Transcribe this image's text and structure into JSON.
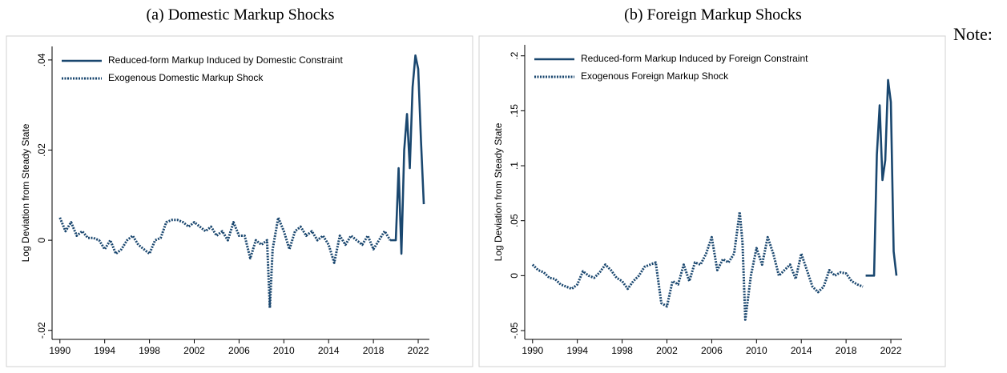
{
  "chart_data": [
    {
      "type": "line",
      "title": "(a) Domestic Markup Shocks",
      "ylabel": "Log Deviation from Steady State",
      "x": [
        1990,
        1990.5,
        1991,
        1991.5,
        1992,
        1992.5,
        1993,
        1993.5,
        1994,
        1994.5,
        1995,
        1995.5,
        1996,
        1996.5,
        1997,
        1997.5,
        1998,
        1998.5,
        1999,
        1999.5,
        2000,
        2000.5,
        2001,
        2001.5,
        2002,
        2002.5,
        2003,
        2003.5,
        2004,
        2004.5,
        2005,
        2005.5,
        2006,
        2006.5,
        2007,
        2007.5,
        2008,
        2008.5,
        2008.75,
        2009,
        2009.5,
        2010,
        2010.5,
        2011,
        2011.5,
        2012,
        2012.5,
        2013,
        2013.5,
        2014,
        2014.5,
        2015,
        2015.5,
        2016,
        2016.5,
        2017,
        2017.5,
        2018,
        2018.5,
        2019,
        2019.5,
        2019.75,
        2020,
        2020.25,
        2020.5,
        2020.75,
        2021,
        2021.25,
        2021.5,
        2021.75,
        2022,
        2022.25,
        2022.5
      ],
      "series": [
        {
          "name": "Reduced-form Markup Induced by Domestic Constraint",
          "color": "#1a476f",
          "style": "solid",
          "values": [
            null,
            null,
            null,
            null,
            null,
            null,
            null,
            null,
            null,
            null,
            null,
            null,
            null,
            null,
            null,
            null,
            null,
            null,
            null,
            null,
            null,
            null,
            null,
            null,
            null,
            null,
            null,
            null,
            null,
            null,
            null,
            null,
            null,
            null,
            null,
            null,
            null,
            null,
            null,
            null,
            null,
            null,
            null,
            null,
            null,
            null,
            null,
            null,
            null,
            null,
            null,
            null,
            null,
            null,
            null,
            null,
            null,
            null,
            null,
            null,
            0,
            0,
            0,
            0.016,
            -0.003,
            0.02,
            0.028,
            0.016,
            0.034,
            0.041,
            0.038,
            0.022,
            0.008
          ]
        },
        {
          "name": "Exogenous Domestic Markup Shock",
          "color": "#1a476f",
          "style": "dotted",
          "values": [
            0.005,
            0.002,
            0.004,
            0.001,
            0.002,
            0.0005,
            0.0005,
            0,
            -0.002,
            0,
            -0.003,
            -0.002,
            0,
            0.001,
            -0.001,
            -0.002,
            -0.003,
            0,
            0.0005,
            0.004,
            0.0045,
            0.0045,
            0.004,
            0.003,
            0.004,
            0.003,
            0.002,
            0.003,
            0.001,
            0.002,
            0,
            0.004,
            0.001,
            0.001,
            -0.004,
            0,
            -0.001,
            0,
            -0.015,
            -0.002,
            0.005,
            0.002,
            -0.002,
            0.002,
            0.003,
            0.001,
            0.002,
            0,
            0.001,
            -0.001,
            -0.005,
            0.001,
            -0.001,
            0.001,
            0,
            -0.001,
            0.001,
            -0.002,
            0,
            0.002,
            0,
            null,
            null,
            null,
            null,
            null,
            null,
            null,
            null,
            null,
            null,
            null,
            null
          ]
        }
      ],
      "xlim": [
        1989.3,
        2023
      ],
      "xticks": [
        1990,
        1994,
        1998,
        2002,
        2006,
        2010,
        2014,
        2018,
        2022
      ],
      "ylim": [
        -0.022,
        0.043
      ],
      "yticks": [
        {
          "value": -0.02,
          "label": "-.02"
        },
        0,
        {
          "value": 0.02,
          "label": ".02"
        },
        {
          "value": 0.04,
          "label": ".04"
        }
      ]
    },
    {
      "type": "line",
      "title": "(b) Foreign Markup Shocks",
      "ylabel": "Log Deviation from Steady State",
      "x": [
        1990,
        1990.5,
        1991,
        1991.5,
        1992,
        1992.5,
        1993,
        1993.5,
        1994,
        1994.5,
        1995,
        1995.5,
        1996,
        1996.5,
        1997,
        1997.5,
        1998,
        1998.5,
        1999,
        1999.5,
        2000,
        2000.5,
        2001,
        2001.5,
        2002,
        2002.5,
        2003,
        2003.5,
        2004,
        2004.5,
        2005,
        2005.5,
        2006,
        2006.5,
        2007,
        2007.5,
        2008,
        2008.5,
        2008.75,
        2009,
        2009.5,
        2010,
        2010.5,
        2011,
        2011.5,
        2012,
        2012.5,
        2013,
        2013.5,
        2014,
        2014.5,
        2015,
        2015.5,
        2016,
        2016.5,
        2017,
        2017.5,
        2018,
        2018.5,
        2019,
        2019.5,
        2019.75,
        2020,
        2020.25,
        2020.5,
        2020.75,
        2021,
        2021.25,
        2021.5,
        2021.75,
        2022,
        2022.25,
        2022.5
      ],
      "series": [
        {
          "name": "Reduced-form Markup Induced by Foreign Constraint",
          "color": "#1a476f",
          "style": "solid",
          "values": [
            null,
            null,
            null,
            null,
            null,
            null,
            null,
            null,
            null,
            null,
            null,
            null,
            null,
            null,
            null,
            null,
            null,
            null,
            null,
            null,
            null,
            null,
            null,
            null,
            null,
            null,
            null,
            null,
            null,
            null,
            null,
            null,
            null,
            null,
            null,
            null,
            null,
            null,
            null,
            null,
            null,
            null,
            null,
            null,
            null,
            null,
            null,
            null,
            null,
            null,
            null,
            null,
            null,
            null,
            null,
            null,
            null,
            null,
            null,
            null,
            null,
            0,
            0,
            0,
            0,
            0.11,
            0.155,
            0.087,
            0.105,
            0.178,
            0.158,
            0.022,
            0
          ]
        },
        {
          "name": "Exogenous Foreign Markup Shock",
          "color": "#1a476f",
          "style": "dotted",
          "values": [
            0.01,
            0.005,
            0.003,
            -0.002,
            -0.003,
            -0.008,
            -0.01,
            -0.012,
            -0.008,
            0.004,
            0,
            -0.002,
            0.003,
            0.01,
            0.005,
            -0.002,
            -0.005,
            -0.012,
            -0.005,
            0,
            0.008,
            0.01,
            0.012,
            -0.025,
            -0.028,
            -0.005,
            -0.008,
            0.01,
            -0.005,
            0.012,
            0.01,
            0.02,
            0.035,
            0.005,
            0.015,
            0.012,
            0.02,
            0.058,
            0.03,
            -0.04,
            0,
            0.025,
            0.01,
            0.035,
            0.02,
            0,
            0.005,
            0.01,
            -0.003,
            0.02,
            0.005,
            -0.01,
            -0.015,
            -0.01,
            0.005,
            0,
            0.003,
            0.002,
            -0.005,
            -0.008,
            -0.01,
            null,
            null,
            null,
            null,
            null,
            null,
            null,
            null,
            null,
            null,
            null,
            null
          ]
        }
      ],
      "xlim": [
        1989.3,
        2023
      ],
      "xticks": [
        1990,
        1994,
        1998,
        2002,
        2006,
        2010,
        2014,
        2018,
        2022
      ],
      "ylim": [
        -0.058,
        0.21
      ],
      "yticks": [
        {
          "value": -0.05,
          "label": "-.05"
        },
        0,
        {
          "value": 0.05,
          "label": ".05"
        },
        {
          "value": 0.1,
          "label": ".1"
        },
        {
          "value": 0.15,
          "label": ".15"
        },
        {
          "value": 0.2,
          "label": ".2"
        }
      ]
    }
  ],
  "note": "Note:"
}
